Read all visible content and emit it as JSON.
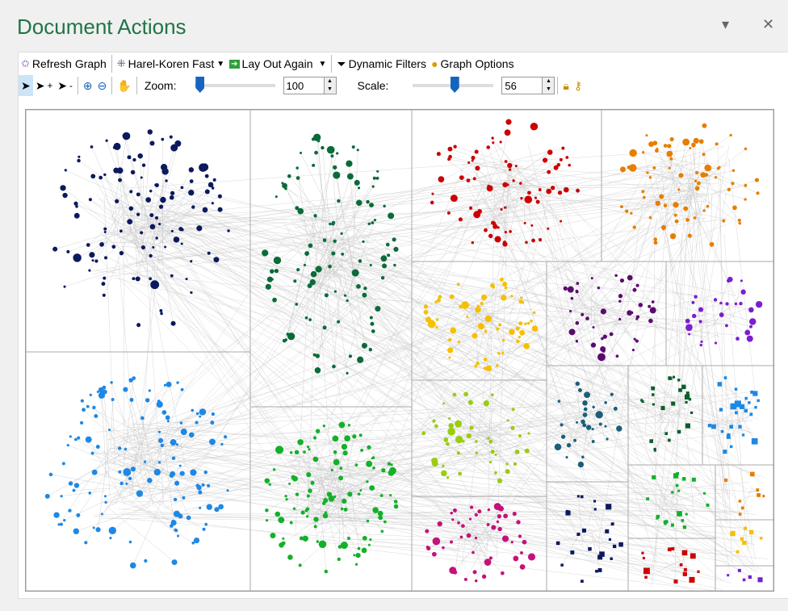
{
  "window": {
    "title": "Document Actions",
    "menu_icon": "chevron-down-icon",
    "close_icon": "close-icon"
  },
  "toolbar": {
    "refresh": "Refresh Graph",
    "layout": "Harel-Koren Fast",
    "layout_again": "Lay Out Again",
    "filters": "Dynamic Filters",
    "options": "Graph Options",
    "zoom_label": "Zoom:",
    "zoom_value": "100",
    "zoom_fraction": 0.02,
    "scale_label": "Scale:",
    "scale_value": "56",
    "scale_fraction": 0.52
  },
  "graph": {
    "edge_color": "#c8c8c8",
    "groups": [
      {
        "color": "#0b1a5e",
        "shape": "circle",
        "n": 120
      },
      {
        "color": "#1e88e5",
        "shape": "circle",
        "n": 130
      },
      {
        "color": "#0a6b3a",
        "shape": "circle",
        "n": 110
      },
      {
        "color": "#13b02a",
        "shape": "circle",
        "n": 110
      },
      {
        "color": "#cc0000",
        "shape": "circle",
        "n": 80
      },
      {
        "color": "#e67e00",
        "shape": "circle",
        "n": 80
      },
      {
        "color": "#f5c000",
        "shape": "circle",
        "n": 60
      },
      {
        "color": "#5c0a6e",
        "shape": "circle",
        "n": 45
      },
      {
        "color": "#7a1fcf",
        "shape": "circle",
        "n": 30
      },
      {
        "color": "#9ccc12",
        "shape": "circle",
        "n": 45
      },
      {
        "color": "#c4127a",
        "shape": "circle",
        "n": 50
      },
      {
        "color": "#1a5f7a",
        "shape": "circle",
        "n": 30
      },
      {
        "color": "#0a5e2a",
        "shape": "square",
        "n": 25
      },
      {
        "color": "#1e88e5",
        "shape": "square",
        "n": 28
      },
      {
        "color": "#0b1a5e",
        "shape": "square",
        "n": 25
      },
      {
        "color": "#13b02a",
        "shape": "square",
        "n": 22
      },
      {
        "color": "#e67e00",
        "shape": "square",
        "n": 8
      },
      {
        "color": "#cc0000",
        "shape": "square",
        "n": 14
      },
      {
        "color": "#f5c000",
        "shape": "square",
        "n": 7
      },
      {
        "color": "#7a1fcf",
        "shape": "square",
        "n": 5
      }
    ]
  }
}
